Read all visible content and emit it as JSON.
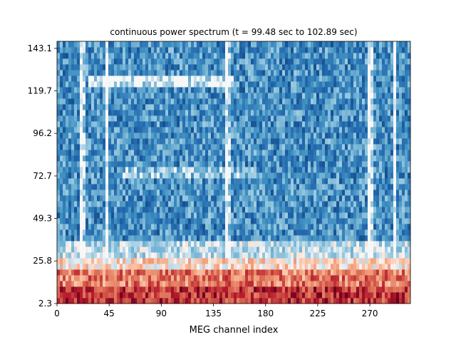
{
  "chart_data": {
    "type": "heatmap",
    "title": "continuous power spectrum (t = 99.48 sec to 102.89 sec)",
    "xlabel": "MEG channel index",
    "ylabel": "",
    "x_ticks": [
      0,
      45,
      90,
      135,
      180,
      225,
      270
    ],
    "y_ticks": [
      "2.3",
      "25.8",
      "49.3",
      "72.7",
      "96.2",
      "119.7",
      "143.1"
    ],
    "xlim": [
      0,
      305
    ],
    "ylim": [
      2.3,
      147
    ],
    "n_channels": 305,
    "colormap": "RdBu_r",
    "grid": false,
    "description_of_values": "low frequencies (2.3 to about 20) show high power (red), higher frequencies show low power (blue); pale vertical stripes near channels 20, 42, 145, 290 and 270; pale horizontal band near 119.7 between channels 25 and 150",
    "colors": {
      "high": "#b2182b",
      "mid": "#f7f7f7",
      "low": "#2166ac"
    }
  }
}
